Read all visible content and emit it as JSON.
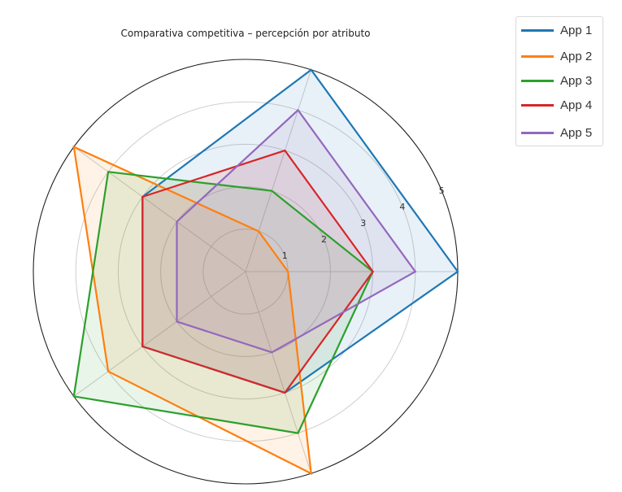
{
  "chart_data": {
    "type": "radar",
    "title": "Comparativa competitiva – percepción por atributo",
    "axes_count": 5,
    "axis_angles_deg": [
      0,
      72,
      144,
      216,
      288
    ],
    "categories": [
      "",
      "",
      "",
      "",
      ""
    ],
    "radial_ticks": [
      1,
      2,
      3,
      4,
      5
    ],
    "rlim": [
      0,
      5
    ],
    "grid": true,
    "legend_position": "upper right, outside",
    "series": [
      {
        "name": "App 1",
        "color": "#1f77b4",
        "values": [
          5,
          5,
          3,
          3,
          3
        ]
      },
      {
        "name": "App 2",
        "color": "#ff7f0e",
        "values": [
          1,
          1,
          5,
          4,
          5
        ]
      },
      {
        "name": "App 3",
        "color": "#2ca02c",
        "values": [
          3,
          2,
          4,
          5,
          4
        ]
      },
      {
        "name": "App 4",
        "color": "#d62728",
        "values": [
          3,
          3,
          3,
          3,
          3
        ]
      },
      {
        "name": "App 5",
        "color": "#9467bd",
        "values": [
          4,
          4,
          2,
          2,
          2
        ]
      }
    ]
  },
  "legend": {
    "items": [
      {
        "label": "App 1",
        "color": "#1f77b4"
      },
      {
        "label": "App 2",
        "color": "#ff7f0e"
      },
      {
        "label": "App 3",
        "color": "#2ca02c"
      },
      {
        "label": "App 4",
        "color": "#d62728"
      },
      {
        "label": "App 5",
        "color": "#9467bd"
      }
    ]
  }
}
